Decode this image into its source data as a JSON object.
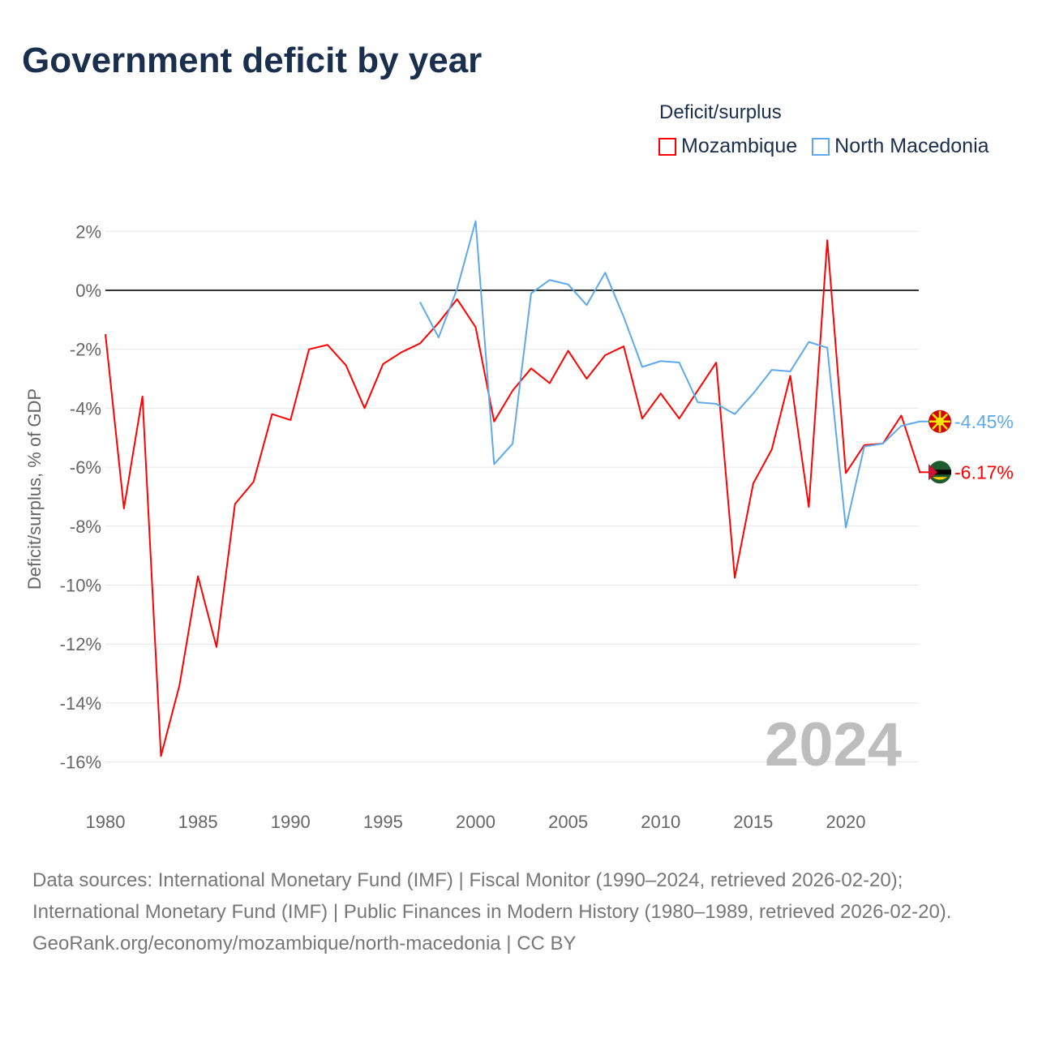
{
  "chart_data": {
    "type": "line",
    "title": "Government deficit by year",
    "ylabel": "Deficit/surplus, % of GDP",
    "xlabel": "",
    "xlim": [
      1980,
      2024
    ],
    "ylim": [
      -17,
      2.5
    ],
    "x_ticks": [
      1980,
      1985,
      1990,
      1995,
      2000,
      2005,
      2010,
      2015,
      2020
    ],
    "y_ticks": [
      2,
      0,
      -2,
      -4,
      -6,
      -8,
      -10,
      -12,
      -14,
      -16
    ],
    "y_tick_labels": [
      "2%",
      "0%",
      "-2%",
      "-4%",
      "-6%",
      "-8%",
      "-10%",
      "-12%",
      "-14%",
      "-16%"
    ],
    "x_tick_labels": [
      "1980",
      "1985",
      "1990",
      "1995",
      "2000",
      "2005",
      "2010",
      "2015",
      "2020"
    ],
    "grid": true,
    "legend_title": "Deficit/surplus",
    "legend_position": "top-right",
    "year_watermark": "2024",
    "series": [
      {
        "name": "Mozambique",
        "color": "#ff0000",
        "end_label": "-6.17%",
        "x": [
          1980,
          1981,
          1982,
          1983,
          1984,
          1985,
          1986,
          1987,
          1988,
          1989,
          1990,
          1991,
          1992,
          1993,
          1994,
          1995,
          1996,
          1997,
          1998,
          1999,
          2000,
          2001,
          2002,
          2003,
          2004,
          2005,
          2006,
          2007,
          2008,
          2009,
          2010,
          2011,
          2012,
          2013,
          2014,
          2015,
          2016,
          2017,
          2018,
          2019,
          2020,
          2021,
          2022,
          2023,
          2024
        ],
        "values": [
          -1.49,
          -7.4,
          -3.6,
          -15.8,
          -13.4,
          -9.7,
          -12.1,
          -7.25,
          -6.5,
          -4.2,
          -4.4,
          -2.0,
          -1.85,
          -2.55,
          -4.0,
          -2.5,
          -2.1,
          -1.8,
          -1.1,
          -0.3,
          -1.25,
          -4.45,
          -3.4,
          -2.65,
          -3.15,
          -2.05,
          -3.0,
          -2.2,
          -1.9,
          -4.35,
          -3.5,
          -4.35,
          -3.4,
          -2.45,
          -9.75,
          -6.55,
          -5.4,
          -2.9,
          -7.35,
          1.7,
          -6.2,
          -5.25,
          -5.2,
          -4.25,
          -6.17
        ]
      },
      {
        "name": "North Macedonia",
        "color": "#5ea9ec",
        "end_label": "-4.45%",
        "x": [
          1997,
          1998,
          1999,
          2000,
          2001,
          2002,
          2003,
          2004,
          2005,
          2006,
          2007,
          2008,
          2009,
          2010,
          2011,
          2012,
          2013,
          2014,
          2015,
          2016,
          2017,
          2018,
          2019,
          2020,
          2021,
          2022,
          2023,
          2024
        ],
        "values": [
          -0.4,
          -1.6,
          0.05,
          2.35,
          -5.9,
          -5.2,
          -0.1,
          0.35,
          0.2,
          -0.5,
          0.6,
          -0.9,
          -2.6,
          -2.4,
          -2.45,
          -3.8,
          -3.85,
          -4.2,
          -3.5,
          -2.7,
          -2.75,
          -1.75,
          -1.95,
          -8.05,
          -5.3,
          -5.2,
          -4.6,
          -4.45
        ]
      }
    ]
  },
  "sources": {
    "line1": "Data sources: International Monetary Fund (IMF) | Fiscal Monitor (1990–2024, retrieved 2026-02-20);",
    "line2": "International Monetary Fund (IMF) | Public Finances in Modern History (1980–1989, retrieved 2026-02-20).",
    "link": "GeoRank.org/economy/mozambique/north-macedonia",
    "license": " | CC BY"
  }
}
